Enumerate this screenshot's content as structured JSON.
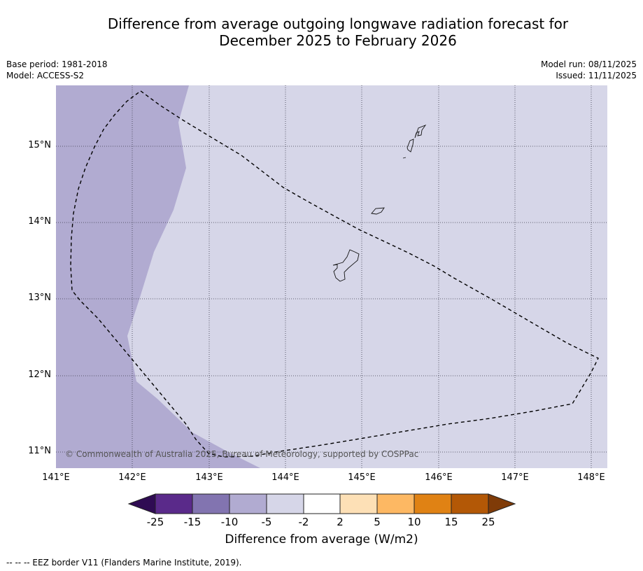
{
  "title": {
    "line1": "Difference from average outgoing longwave radiation forecast for",
    "line2": "December 2025 to February 2026"
  },
  "meta": {
    "base_period": "Base period: 1981-2018",
    "model": "Model: ACCESS-S2",
    "model_run": "Model run: 08/11/2025",
    "issued": "Issued: 11/11/2025"
  },
  "map": {
    "extent": {
      "lon_min": 141.0,
      "lon_max": 148.2,
      "lat_min": 10.8,
      "lat_max": 15.8
    },
    "lat_ticks": [
      {
        "value": 15,
        "label": "15°N"
      },
      {
        "value": 14,
        "label": "14°N"
      },
      {
        "value": 13,
        "label": "13°N"
      },
      {
        "value": 12,
        "label": "12°N"
      },
      {
        "value": 11,
        "label": "11°N"
      }
    ],
    "lon_ticks": [
      {
        "value": 141,
        "label": "141°E"
      },
      {
        "value": 142,
        "label": "142°E"
      },
      {
        "value": 143,
        "label": "143°E"
      },
      {
        "value": 144,
        "label": "144°E"
      },
      {
        "value": 145,
        "label": "145°E"
      },
      {
        "value": 146,
        "label": "146°E"
      },
      {
        "value": 147,
        "label": "147°E"
      },
      {
        "value": 148,
        "label": "148°E"
      }
    ],
    "regions": [
      {
        "name": "-5 to -2 W/m2",
        "color": "#d6d6e8"
      },
      {
        "name": "-10 to -5 W/m2",
        "color": "#b1abd1"
      }
    ],
    "copyright": "© Commonwealth of Australia 2025, Bureau of Meteorology, supported by COSPPac"
  },
  "colorbar": {
    "ticks": [
      "-25",
      "-15",
      "-10",
      "-5",
      "-2",
      "2",
      "5",
      "10",
      "15",
      "25"
    ],
    "colors": [
      "#2f0b53",
      "#5a2a8a",
      "#8274b0",
      "#b1abd1",
      "#d6d6e8",
      "#ffffff",
      "#fde0b6",
      "#fdb863",
      "#e08214",
      "#b35806",
      "#7f3b08"
    ],
    "label": "Difference from average (W/m2)"
  },
  "footer": "-- -- -- EEZ border V11 (Flanders Marine Institute, 2019)."
}
